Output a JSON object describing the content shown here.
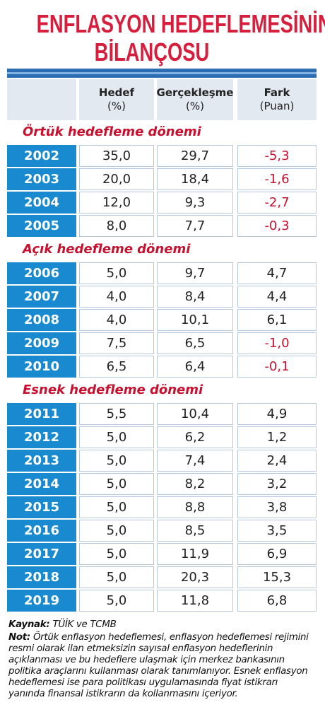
{
  "header": {
    "title": [
      "ENFLASYON HEDEFLEMESİNİN",
      "BİLANÇOSU"
    ]
  },
  "table": {
    "columns": [
      {
        "label": "Hedef",
        "unit": "(%)"
      },
      {
        "label": "Gerçekleşme",
        "unit": "(%)"
      },
      {
        "label": "Fark",
        "unit": "(Puan)"
      }
    ],
    "sections": [
      {
        "title": "Örtük hedefleme dönemi",
        "rows": [
          [
            "2002",
            "35,0",
            "29,7",
            "-5,3"
          ],
          [
            "2003",
            "20,0",
            "18,4",
            "-1,6"
          ],
          [
            "2004",
            "12,0",
            "9,3",
            "-2,7"
          ],
          [
            "2005",
            "8,0",
            "7,7",
            "-0,3"
          ]
        ]
      },
      {
        "title": "Açık hedefleme dönemi",
        "rows": [
          [
            "2006",
            "5,0",
            "9,7",
            "4,7"
          ],
          [
            "2007",
            "4,0",
            "8,4",
            "4,4"
          ],
          [
            "2008",
            "4,0",
            "10,1",
            "6,1"
          ],
          [
            "2009",
            "7,5",
            "6,5",
            "-1,0"
          ],
          [
            "2010",
            "6,5",
            "6,4",
            "-0,1"
          ]
        ]
      },
      {
        "title": "Esnek hedefleme dönemi",
        "rows": [
          [
            "2011",
            "5,5",
            "10,4",
            "4,9"
          ],
          [
            "2012",
            "5,0",
            "6,2",
            "1,2"
          ],
          [
            "2013",
            "5,0",
            "7,4",
            "2,4"
          ],
          [
            "2014",
            "5,0",
            "8,2",
            "3,2"
          ],
          [
            "2015",
            "5,0",
            "8,8",
            "3,8"
          ],
          [
            "2016",
            "5,0",
            "8,5",
            "3,5"
          ],
          [
            "2017",
            "5,0",
            "11,9",
            "6,9"
          ],
          [
            "2018",
            "5,0",
            "20,3",
            "15,3"
          ],
          [
            "2019",
            "5,0",
            "11,8",
            "6,8"
          ]
        ]
      }
    ]
  },
  "footer": {
    "source_label": "Kaynak:",
    "source": "TÜİK ve TCMB",
    "note_label": "Not:",
    "note": "Örtük enflasyon hedeflemesi, enflasyon hedeflemesi rejimini resmi olarak ilan etmeksizin sayısal enflasyon hedeflerinin açıklanması ve bu hedeflere ulaşmak için merkez bankasının politika araçlarını kullanması olarak tanımlanıyor. Esnek enflasyon hedeflemesi ise para politikası uygulamasında fiyat istikrarı yanında finansal istikrarın da kollanmasını içeriyor."
  }
}
